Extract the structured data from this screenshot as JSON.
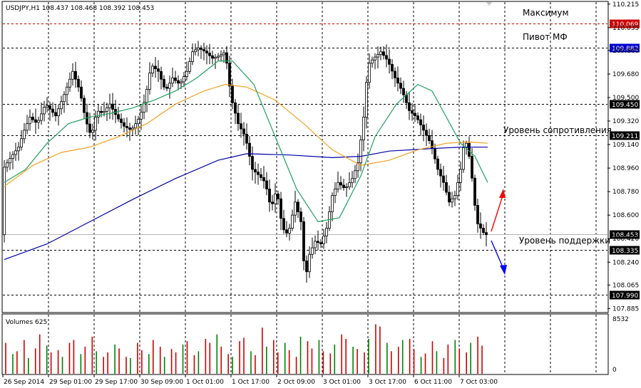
{
  "chart_data": {
    "type": "candlestick",
    "symbol_header": "USDJPY,H1  108.437 108.468 108.392 108.453",
    "volumes_label": "Volumes 625",
    "price_axis": {
      "ylim": [
        107.86,
        110.23
      ],
      "ticks": [
        "110.215",
        "110.035",
        "109.860",
        "109.680",
        "109.500",
        "109.320",
        "109.140",
        "108.960",
        "108.780",
        "108.600",
        "108.420",
        "108.240",
        "108.065",
        "107.885"
      ]
    },
    "volume_axis": {
      "ylim": [
        0,
        8532
      ],
      "ticks": [
        "8532",
        "0"
      ]
    },
    "time_labels": [
      "26 Sep 2014",
      "29 Sep 01:00",
      "29 Sep 17:00",
      "30 Sep 09:00",
      "1 Oct 01:00",
      "1 Oct 17:00",
      "2 Oct 09:00",
      "3 Oct 01:00",
      "3 Oct 17:00",
      "6 Oct 11:00",
      "7 Oct 03:00"
    ],
    "levels": [
      {
        "name": "Максимум",
        "value": 110.069,
        "label": "110.069",
        "color": "#cc0000",
        "style": "dashed-red"
      },
      {
        "name": "Пивот МФ",
        "value": 109.882,
        "label": "109.882",
        "color": "#0000cc",
        "style": "dashed-black"
      },
      {
        "name": "",
        "value": 109.45,
        "label": "109.450",
        "color": "#000000",
        "style": "dashed-black"
      },
      {
        "name": "Уровень сопротивления",
        "value": 109.211,
        "label": "109.211",
        "color": "#000000",
        "style": "dashed-black"
      },
      {
        "name": "",
        "value": 108.453,
        "label": "108.453",
        "color": "#000000",
        "style": "solid-grey"
      },
      {
        "name": "Уровень поддержки",
        "value": 108.335,
        "label": "108.335",
        "color": "#000000",
        "style": "dashed-black"
      },
      {
        "name": "",
        "value": 107.99,
        "label": "107.990",
        "color": "#000000",
        "style": "dashed-black"
      }
    ],
    "price_path": [
      [
        0,
        108.95
      ],
      [
        12,
        109.05
      ],
      [
        22,
        109.12
      ],
      [
        30,
        109.25
      ],
      [
        38,
        109.35
      ],
      [
        48,
        109.3
      ],
      [
        60,
        109.45
      ],
      [
        74,
        109.36
      ],
      [
        88,
        109.55
      ],
      [
        98,
        109.7
      ],
      [
        108,
        109.55
      ],
      [
        116,
        109.33
      ],
      [
        124,
        109.2
      ],
      [
        132,
        109.4
      ],
      [
        140,
        109.38
      ],
      [
        150,
        109.45
      ],
      [
        160,
        109.35
      ],
      [
        170,
        109.28
      ],
      [
        180,
        109.25
      ],
      [
        192,
        109.35
      ],
      [
        200,
        109.5
      ],
      [
        208,
        109.75
      ],
      [
        218,
        109.7
      ],
      [
        228,
        109.55
      ],
      [
        238,
        109.65
      ],
      [
        248,
        109.6
      ],
      [
        258,
        109.7
      ],
      [
        266,
        109.85
      ],
      [
        274,
        109.88
      ],
      [
        284,
        109.85
      ],
      [
        294,
        109.8
      ],
      [
        304,
        109.82
      ],
      [
        312,
        109.85
      ],
      [
        320,
        109.5
      ],
      [
        330,
        109.3
      ],
      [
        340,
        109.2
      ],
      [
        350,
        108.95
      ],
      [
        360,
        108.9
      ],
      [
        368,
        108.85
      ],
      [
        376,
        108.65
      ],
      [
        384,
        108.8
      ],
      [
        392,
        108.5
      ],
      [
        400,
        108.45
      ],
      [
        410,
        108.7
      ],
      [
        418,
        108.55
      ],
      [
        424,
        108.1
      ],
      [
        430,
        108.3
      ],
      [
        438,
        108.4
      ],
      [
        446,
        108.38
      ],
      [
        454,
        108.5
      ],
      [
        462,
        108.75
      ],
      [
        470,
        108.85
      ],
      [
        480,
        108.8
      ],
      [
        490,
        108.88
      ],
      [
        498,
        109.0
      ],
      [
        506,
        109.35
      ],
      [
        512,
        109.75
      ],
      [
        520,
        109.8
      ],
      [
        530,
        109.85
      ],
      [
        540,
        109.78
      ],
      [
        550,
        109.65
      ],
      [
        560,
        109.55
      ],
      [
        570,
        109.4
      ],
      [
        580,
        109.35
      ],
      [
        590,
        109.25
      ],
      [
        600,
        109.15
      ],
      [
        610,
        108.95
      ],
      [
        618,
        108.85
      ],
      [
        626,
        108.7
      ],
      [
        634,
        108.75
      ],
      [
        642,
        108.95
      ],
      [
        648,
        109.2
      ],
      [
        654,
        109.05
      ],
      [
        660,
        108.8
      ],
      [
        664,
        108.55
      ],
      [
        670,
        108.5
      ],
      [
        676,
        108.45
      ]
    ],
    "ma_fast": [
      [
        0,
        108.85
      ],
      [
        30,
        108.95
      ],
      [
        60,
        109.15
      ],
      [
        90,
        109.3
      ],
      [
        120,
        109.35
      ],
      [
        150,
        109.38
      ],
      [
        180,
        109.42
      ],
      [
        210,
        109.48
      ],
      [
        240,
        109.55
      ],
      [
        270,
        109.65
      ],
      [
        300,
        109.78
      ],
      [
        320,
        109.78
      ],
      [
        350,
        109.6
      ],
      [
        380,
        109.2
      ],
      [
        410,
        108.8
      ],
      [
        440,
        108.55
      ],
      [
        470,
        108.58
      ],
      [
        500,
        108.9
      ],
      [
        520,
        109.2
      ],
      [
        550,
        109.45
      ],
      [
        580,
        109.6
      ],
      [
        600,
        109.55
      ],
      [
        620,
        109.35
      ],
      [
        640,
        109.15
      ],
      [
        660,
        109.05
      ],
      [
        678,
        108.85
      ]
    ],
    "ma_mid": [
      [
        0,
        108.82
      ],
      [
        40,
        108.98
      ],
      [
        80,
        109.08
      ],
      [
        120,
        109.12
      ],
      [
        160,
        109.2
      ],
      [
        200,
        109.3
      ],
      [
        240,
        109.45
      ],
      [
        280,
        109.55
      ],
      [
        310,
        109.6
      ],
      [
        340,
        109.58
      ],
      [
        380,
        109.48
      ],
      [
        420,
        109.3
      ],
      [
        460,
        109.1
      ],
      [
        500,
        108.98
      ],
      [
        540,
        109.02
      ],
      [
        580,
        109.1
      ],
      [
        620,
        109.15
      ],
      [
        650,
        109.16
      ],
      [
        678,
        109.15
      ]
    ],
    "ma_slow": [
      [
        0,
        108.26
      ],
      [
        60,
        108.38
      ],
      [
        120,
        108.55
      ],
      [
        180,
        108.72
      ],
      [
        240,
        108.88
      ],
      [
        300,
        109.02
      ],
      [
        340,
        109.07
      ],
      [
        400,
        109.06
      ],
      [
        460,
        109.04
      ],
      [
        500,
        109.05
      ],
      [
        540,
        109.09
      ],
      [
        600,
        109.11
      ],
      [
        640,
        109.12
      ],
      [
        678,
        109.12
      ]
    ],
    "volumes": [
      55,
      35,
      40,
      60,
      28,
      45,
      70,
      50,
      38,
      42,
      30,
      55,
      60,
      35,
      48,
      66,
      40,
      30,
      38,
      52,
      45,
      30,
      28,
      55,
      42,
      35,
      60,
      48,
      30,
      44,
      38,
      52,
      58,
      33,
      40,
      62,
      55,
      70,
      48,
      35,
      30,
      58,
      64,
      40,
      33,
      82,
      48,
      60,
      38,
      55,
      42,
      30,
      66,
      58,
      45,
      60,
      40,
      36,
      52,
      70,
      62,
      48,
      44,
      38,
      62,
      88,
      84,
      55,
      40,
      48,
      60,
      62,
      44,
      30,
      36,
      58,
      40,
      28,
      52,
      60,
      45,
      38,
      55,
      66,
      50
    ],
    "arrows": [
      {
        "direction": "up",
        "color": "#ff0000"
      },
      {
        "direction": "down",
        "color": "#0000ff"
      }
    ],
    "colors": {
      "candles": "#000000",
      "ma_fast": "#20a060",
      "ma_mid": "#f0a020",
      "ma_slow": "#0000aa",
      "grid": "#000000",
      "volume_bars": "#cc0000",
      "volume_bars_alt": "#008000",
      "pivot_label_bg": "#0000cc",
      "max_label_bg": "#cc0000"
    }
  }
}
